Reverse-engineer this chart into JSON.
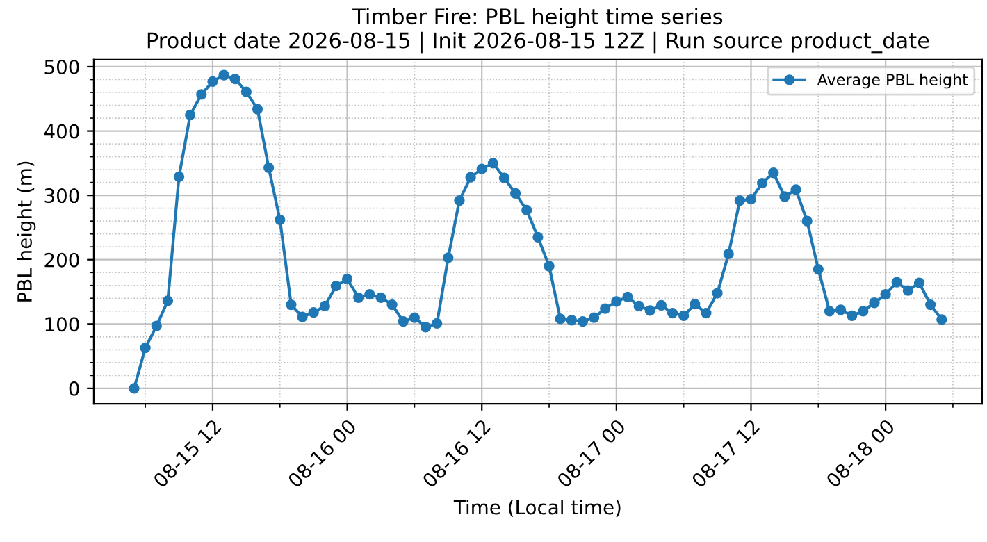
{
  "chart_data": {
    "type": "line",
    "title": "Timber Fire: PBL height time series",
    "subtitle": "Product date 2026-08-15 | Init 2026-08-15 12Z | Run source product_date",
    "xlabel": "Time (Local time)",
    "ylabel": "PBL height (m)",
    "x": [
      "2026-08-15T05:00",
      "2026-08-15T06:00",
      "2026-08-15T07:00",
      "2026-08-15T08:00",
      "2026-08-15T09:00",
      "2026-08-15T10:00",
      "2026-08-15T11:00",
      "2026-08-15T12:00",
      "2026-08-15T13:00",
      "2026-08-15T14:00",
      "2026-08-15T15:00",
      "2026-08-15T16:00",
      "2026-08-15T17:00",
      "2026-08-15T18:00",
      "2026-08-15T19:00",
      "2026-08-15T20:00",
      "2026-08-15T21:00",
      "2026-08-15T22:00",
      "2026-08-15T23:00",
      "2026-08-16T00:00",
      "2026-08-16T01:00",
      "2026-08-16T02:00",
      "2026-08-16T03:00",
      "2026-08-16T04:00",
      "2026-08-16T05:00",
      "2026-08-16T06:00",
      "2026-08-16T07:00",
      "2026-08-16T08:00",
      "2026-08-16T09:00",
      "2026-08-16T10:00",
      "2026-08-16T11:00",
      "2026-08-16T12:00",
      "2026-08-16T13:00",
      "2026-08-16T14:00",
      "2026-08-16T15:00",
      "2026-08-16T16:00",
      "2026-08-16T17:00",
      "2026-08-16T18:00",
      "2026-08-16T19:00",
      "2026-08-16T20:00",
      "2026-08-16T21:00",
      "2026-08-16T22:00",
      "2026-08-16T23:00",
      "2026-08-17T00:00",
      "2026-08-17T01:00",
      "2026-08-17T02:00",
      "2026-08-17T03:00",
      "2026-08-17T04:00",
      "2026-08-17T05:00",
      "2026-08-17T06:00",
      "2026-08-17T07:00",
      "2026-08-17T08:00",
      "2026-08-17T09:00",
      "2026-08-17T10:00",
      "2026-08-17T11:00",
      "2026-08-17T12:00",
      "2026-08-17T13:00",
      "2026-08-17T14:00",
      "2026-08-17T15:00",
      "2026-08-17T16:00",
      "2026-08-17T17:00",
      "2026-08-17T18:00",
      "2026-08-17T19:00",
      "2026-08-17T20:00",
      "2026-08-17T21:00",
      "2026-08-17T22:00",
      "2026-08-17T23:00",
      "2026-08-18T00:00",
      "2026-08-18T01:00",
      "2026-08-18T02:00",
      "2026-08-18T03:00",
      "2026-08-18T04:00",
      "2026-08-18T05:00"
    ],
    "series": [
      {
        "name": "Average PBL height",
        "color": "#1f77b4",
        "values": [
          0,
          63,
          97,
          136,
          329,
          425,
          457,
          477,
          487,
          481,
          461,
          434,
          343,
          262,
          130,
          111,
          118,
          128,
          159,
          170,
          141,
          146,
          141,
          130,
          104,
          110,
          95,
          101,
          203,
          292,
          328,
          341,
          350,
          327,
          303,
          277,
          235,
          190,
          108,
          106,
          104,
          110,
          124,
          135,
          142,
          128,
          121,
          129,
          117,
          113,
          131,
          117,
          148,
          209,
          292,
          294,
          319,
          335,
          298,
          309,
          260,
          185,
          120,
          122,
          113,
          120,
          133,
          146,
          165,
          152,
          164,
          130,
          107
        ]
      }
    ],
    "xlim": [
      "2026-08-15T01:24",
      "2026-08-18T08:36"
    ],
    "xticks": [
      {
        "value": "2026-08-15T06:00",
        "label": null
      },
      {
        "value": "2026-08-15T12:00",
        "label": "08-15 12"
      },
      {
        "value": "2026-08-15T18:00",
        "label": null
      },
      {
        "value": "2026-08-16T00:00",
        "label": "08-16 00"
      },
      {
        "value": "2026-08-16T06:00",
        "label": null
      },
      {
        "value": "2026-08-16T12:00",
        "label": "08-16 12"
      },
      {
        "value": "2026-08-16T18:00",
        "label": null
      },
      {
        "value": "2026-08-17T00:00",
        "label": "08-17 00"
      },
      {
        "value": "2026-08-17T06:00",
        "label": null
      },
      {
        "value": "2026-08-17T12:00",
        "label": "08-17 12"
      },
      {
        "value": "2026-08-17T18:00",
        "label": null
      },
      {
        "value": "2026-08-18T00:00",
        "label": "08-18 00"
      },
      {
        "value": "2026-08-18T06:00",
        "label": null
      }
    ],
    "ylim": [
      -24,
      511
    ],
    "yticks": [
      0,
      {
        "value": 20,
        "label": null
      },
      {
        "value": 40,
        "label": null
      },
      {
        "value": 60,
        "label": null
      },
      {
        "value": 80,
        "label": null
      },
      100,
      {
        "value": 120,
        "label": null
      },
      {
        "value": 140,
        "label": null
      },
      {
        "value": 160,
        "label": null
      },
      {
        "value": 180,
        "label": null
      },
      200,
      {
        "value": 220,
        "label": null
      },
      {
        "value": 240,
        "label": null
      },
      {
        "value": 260,
        "label": null
      },
      {
        "value": 280,
        "label": null
      },
      300,
      {
        "value": 320,
        "label": null
      },
      {
        "value": 340,
        "label": null
      },
      {
        "value": 360,
        "label": null
      },
      {
        "value": 380,
        "label": null
      },
      400,
      {
        "value": 420,
        "label": null
      },
      {
        "value": 440,
        "label": null
      },
      {
        "value": 460,
        "label": null
      },
      {
        "value": 480,
        "label": null
      },
      500
    ],
    "grid": true,
    "legend": "top right",
    "marker": "circle",
    "line_style": "solid"
  }
}
